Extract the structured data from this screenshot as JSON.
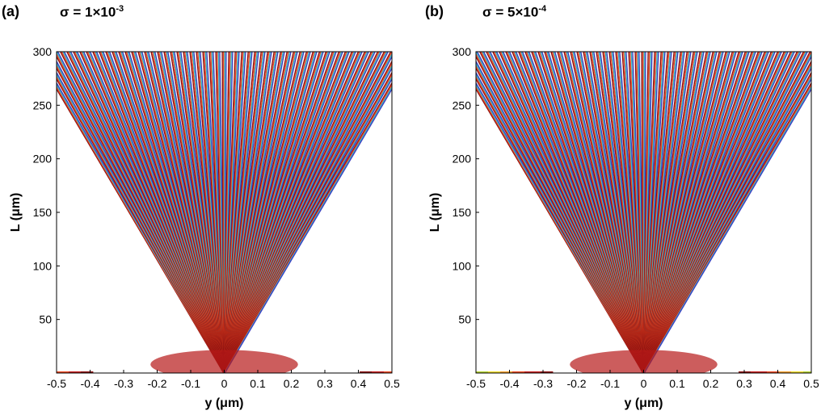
{
  "chart_data": [
    {
      "type": "heatmap",
      "panel_label": "(a)",
      "title_prefix": "σ = ",
      "title_mantissa": "1×10",
      "title_exponent": "-3",
      "xlabel": "y (μm)",
      "ylabel": "L (μm)",
      "xlim": [
        -0.5,
        0.5
      ],
      "ylim": [
        0,
        300
      ],
      "x_ticks": [
        -0.5,
        -0.4,
        -0.3,
        -0.2,
        -0.1,
        0,
        0.1,
        0.2,
        0.3,
        0.4,
        0.5
      ],
      "x_tick_labels": [
        "-0.5",
        "-0.4",
        "-0.3",
        "-0.2",
        "-0.1",
        "0",
        "0.1",
        "0.2",
        "0.3",
        "0.4",
        "0.5"
      ],
      "y_ticks": [
        50,
        100,
        150,
        200,
        250,
        300
      ],
      "y_tick_labels": [
        "50",
        "100",
        "150",
        "200",
        "250",
        "300"
      ],
      "sigma": 0.001,
      "colormap": [
        "#4a1570",
        "#7a2a8c",
        "#3b3fbf",
        "#2f7fd6",
        "#35b8c8",
        "#4ec36a",
        "#b6d630",
        "#f2e02a",
        "#f6a12a",
        "#ef4a22",
        "#c81e1e",
        "#8c1010"
      ]
    },
    {
      "type": "heatmap",
      "panel_label": "(b)",
      "title_prefix": "σ = ",
      "title_mantissa": "5×10",
      "title_exponent": "-4",
      "xlabel": "y (μm)",
      "ylabel": "L (μm)",
      "xlim": [
        -0.5,
        0.5
      ],
      "ylim": [
        0,
        300
      ],
      "x_ticks": [
        -0.5,
        -0.4,
        -0.3,
        -0.2,
        -0.1,
        0,
        0.1,
        0.2,
        0.3,
        0.4,
        0.5
      ],
      "x_tick_labels": [
        "-0.5",
        "-0.4",
        "-0.3",
        "-0.2",
        "-0.1",
        "0",
        "0.1",
        "0.2",
        "0.3",
        "0.4",
        "0.5"
      ],
      "y_ticks": [
        50,
        100,
        150,
        200,
        250,
        300
      ],
      "y_tick_labels": [
        "50",
        "100",
        "150",
        "200",
        "250",
        "300"
      ],
      "sigma": 0.0005,
      "colormap": [
        "#4a1570",
        "#7a2a8c",
        "#3b3fbf",
        "#2f7fd6",
        "#35b8c8",
        "#4ec36a",
        "#b6d630",
        "#f2e02a",
        "#f6a12a",
        "#ef4a22",
        "#c81e1e",
        "#8c1010"
      ]
    }
  ]
}
